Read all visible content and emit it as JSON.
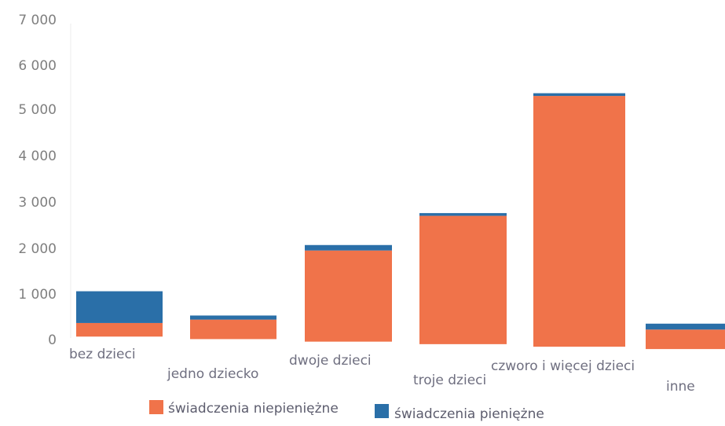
{
  "chart_data": {
    "type": "bar",
    "stacked": true,
    "categories": [
      "bez dzieci",
      "jedno dziecko",
      "dwoje dzieci",
      "troje dzieci",
      "czworo i więcej dzieci",
      "inne"
    ],
    "series": [
      {
        "name": "świadczenia niepieniężne",
        "color": "#f0734a",
        "values": [
          300,
          430,
          2010,
          2830,
          5530,
          430
        ]
      },
      {
        "name": "świadczenia pieniężne",
        "color": "#2a6fa8",
        "values": [
          700,
          90,
          120,
          60,
          60,
          130
        ]
      }
    ],
    "y_ticks": [
      "0",
      "1 000",
      "2 000",
      "3 000",
      "4 000",
      "5 000",
      "6 000",
      "7 000"
    ],
    "ylim": [
      0,
      7000
    ],
    "grid": false,
    "legend_position": "bottom"
  }
}
